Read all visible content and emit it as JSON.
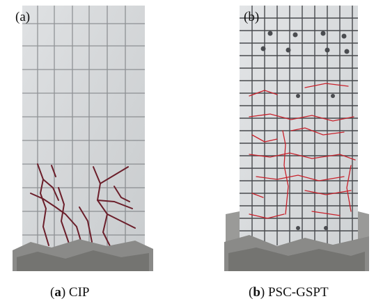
{
  "panels": [
    {
      "label": "(a)",
      "caption_letter": "a",
      "caption_text": " CIP"
    },
    {
      "label": "(b)",
      "caption_letter": "b",
      "caption_text": " PSC-GSPT"
    }
  ],
  "colors": {
    "concrete": "#d6d8da",
    "grid_dark": "#3a3c40",
    "crack_red": "#c8202a",
    "crack_dark": "#6b1e2a",
    "base_rubble": "#8a8a88"
  }
}
